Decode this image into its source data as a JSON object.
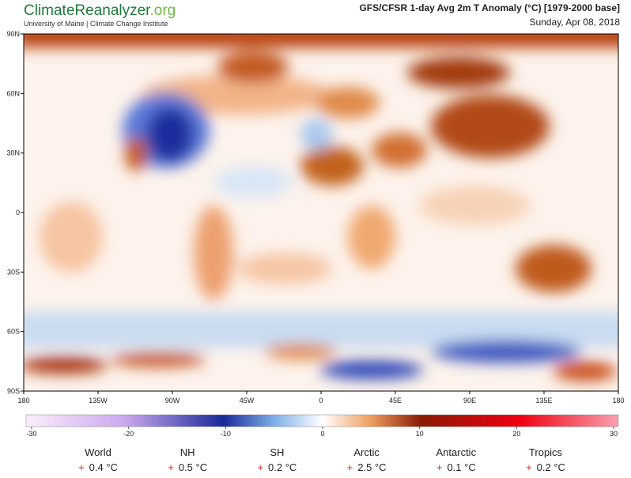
{
  "header": {
    "brand": {
      "main": "ClimateReanalyzer",
      "suffix": ".org"
    },
    "subtitle": "University of Maine | Climate Change Institute",
    "title": "GFS/CFSR 1-day Avg 2m T Anomaly (°C) [1979-2000 base]",
    "date": "Sunday, Apr 08, 2018"
  },
  "map": {
    "lon_ticks": [
      {
        "value": -180,
        "label": "180"
      },
      {
        "value": -135,
        "label": "135W"
      },
      {
        "value": -90,
        "label": "90W"
      },
      {
        "value": -45,
        "label": "45W"
      },
      {
        "value": 0,
        "label": "0"
      },
      {
        "value": 45,
        "label": "45E"
      },
      {
        "value": 90,
        "label": "90E"
      },
      {
        "value": 135,
        "label": "135E"
      },
      {
        "value": 180,
        "label": "180"
      }
    ],
    "lat_ticks": [
      {
        "value": 90,
        "label": "90N"
      },
      {
        "value": 60,
        "label": "60N"
      },
      {
        "value": 30,
        "label": "30N"
      },
      {
        "value": 0,
        "label": "0"
      },
      {
        "value": -30,
        "label": "30S"
      },
      {
        "value": -60,
        "label": "60S"
      },
      {
        "value": -90,
        "label": "90S"
      }
    ]
  },
  "colorbar": {
    "range": [
      -30,
      30
    ],
    "ticks": [
      -30,
      -20,
      -10,
      0,
      10,
      20,
      30
    ]
  },
  "stats": [
    {
      "name": "World",
      "sign": "+",
      "value": "0.4 °C"
    },
    {
      "name": "NH",
      "sign": "+",
      "value": "0.5 °C"
    },
    {
      "name": "SH",
      "sign": "+",
      "value": "0.2 °C"
    },
    {
      "name": "Arctic",
      "sign": "+",
      "value": "2.5 °C"
    },
    {
      "name": "Antarctic",
      "sign": "+",
      "value": "0.1 °C"
    },
    {
      "name": "Tropics",
      "sign": "+",
      "value": "0.2 °C"
    }
  ]
}
